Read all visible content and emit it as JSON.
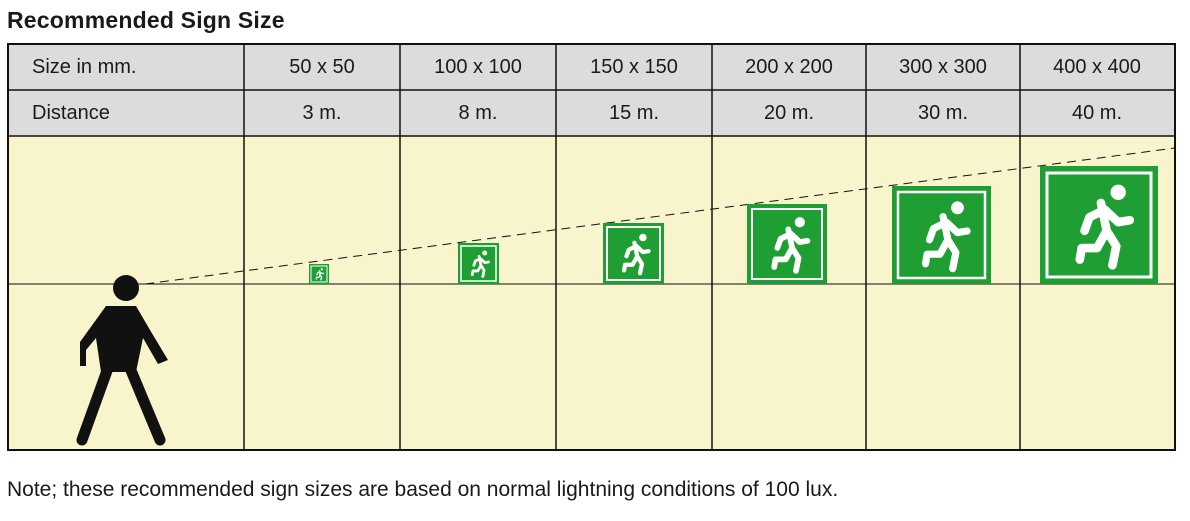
{
  "title": "Recommended Sign Size",
  "table": {
    "row_labels": [
      "Size in mm.",
      "Distance"
    ],
    "columns": [
      {
        "size": "50 x 50",
        "distance": "3 m.",
        "size_mm": 50
      },
      {
        "size": "100 x 100",
        "distance": "8 m.",
        "size_mm": 100
      },
      {
        "size": "150 x 150",
        "distance": "15 m.",
        "size_mm": 150
      },
      {
        "size": "200 x 200",
        "distance": "20 m.",
        "size_mm": 200
      },
      {
        "size": "300 x 300",
        "distance": "30 m.",
        "size_mm": 300
      },
      {
        "size": "400 x 400",
        "distance": "40 m.",
        "size_mm": 400
      }
    ]
  },
  "illustration": {
    "figure": "walking-person-icon",
    "sign_icon": "running-man-exit-icon",
    "colors": {
      "header_bg": "#dcdcdc",
      "panel_bg": "#f8f4cb",
      "sign_green": "#1e9e33",
      "figure": "#111111",
      "grid_line": "#111111"
    }
  },
  "note": "Note; these recommended sign sizes are based on normal lightning conditions of 100 lux."
}
